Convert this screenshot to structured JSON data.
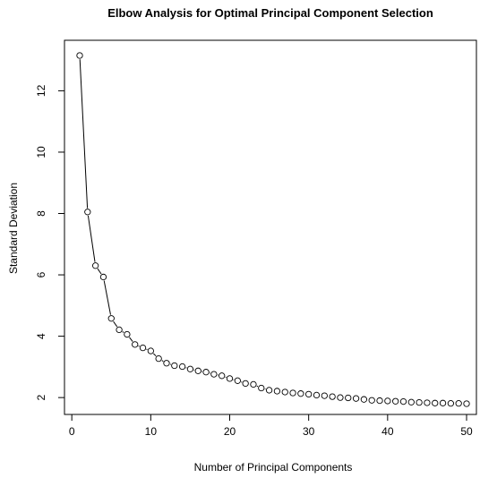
{
  "chart_data": {
    "type": "scatter",
    "title": "Elbow Analysis for Optimal Principal Component Selection",
    "xlabel": "Number of Principal Components",
    "ylabel": "Standard Deviation",
    "xlim": [
      1,
      50
    ],
    "ylim": [
      1.8,
      13.15
    ],
    "x_ticks": [
      0,
      10,
      20,
      30,
      40,
      50
    ],
    "y_ticks": [
      2,
      4,
      6,
      8,
      10,
      12
    ],
    "grid": false,
    "legend": "none",
    "line_style": "line-and-points",
    "marker": "open-circle",
    "series": [
      {
        "x": [
          1,
          2,
          3,
          4,
          5,
          6,
          7,
          8,
          9,
          10,
          11,
          12,
          13,
          14,
          15,
          16,
          17,
          18,
          19,
          20,
          21,
          22,
          23,
          24,
          25,
          26,
          27,
          28,
          29,
          30,
          31,
          32,
          33,
          34,
          35,
          36,
          37,
          38,
          39,
          40,
          41,
          42,
          43,
          44,
          45,
          46,
          47,
          48,
          49,
          50
        ],
        "values": [
          13.15,
          8.05,
          6.3,
          5.93,
          4.58,
          4.21,
          4.06,
          3.73,
          3.62,
          3.52,
          3.27,
          3.12,
          3.04,
          3.01,
          2.93,
          2.87,
          2.83,
          2.76,
          2.71,
          2.62,
          2.55,
          2.46,
          2.43,
          2.31,
          2.24,
          2.21,
          2.18,
          2.15,
          2.13,
          2.11,
          2.08,
          2.06,
          2.03,
          2.0,
          1.99,
          1.97,
          1.94,
          1.91,
          1.9,
          1.89,
          1.88,
          1.87,
          1.85,
          1.84,
          1.83,
          1.82,
          1.82,
          1.81,
          1.81,
          1.8
        ]
      }
    ]
  }
}
